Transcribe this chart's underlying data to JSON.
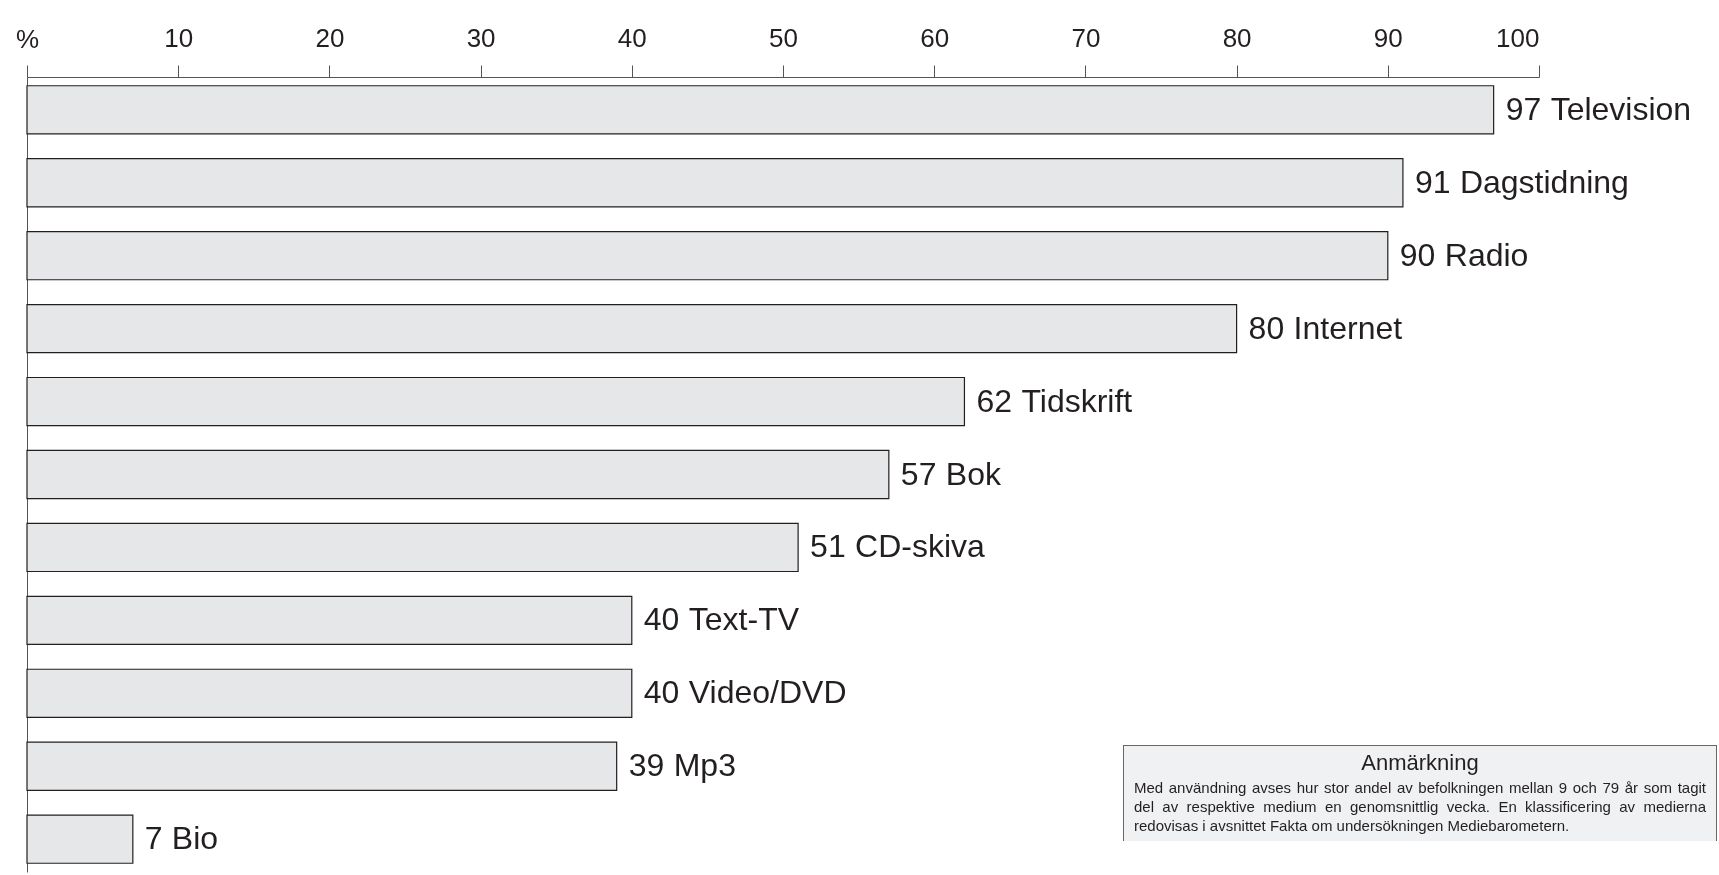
{
  "chart_data": {
    "type": "bar",
    "orientation": "horizontal",
    "xlabel": "%",
    "categories": [
      "Television",
      "Dagstidning",
      "Radio",
      "Internet",
      "Tidskrift",
      "Bok",
      "CD-skiva",
      "Text-TV",
      "Video/DVD",
      "Mp3",
      "Bio"
    ],
    "values": [
      97,
      91,
      90,
      80,
      62,
      57,
      51,
      40,
      40,
      39,
      7
    ],
    "color": "#e6e7e8",
    "data_labels": true,
    "xlim": [
      0,
      100
    ],
    "xticks": [
      {
        "value": 0,
        "label": null
      },
      10,
      20,
      30,
      40,
      50,
      60,
      70,
      80,
      90,
      100
    ],
    "annotations": [
      "Anmärkning",
      "Med användning avses hur stor andel av befolkningen mellan 9 och 79 år som tagit del av respektive medium en genomsnittlig vecka. En klassificering av medierna redovisas i avsnittet Fakta om undersökningen Mediebarometern."
    ]
  }
}
